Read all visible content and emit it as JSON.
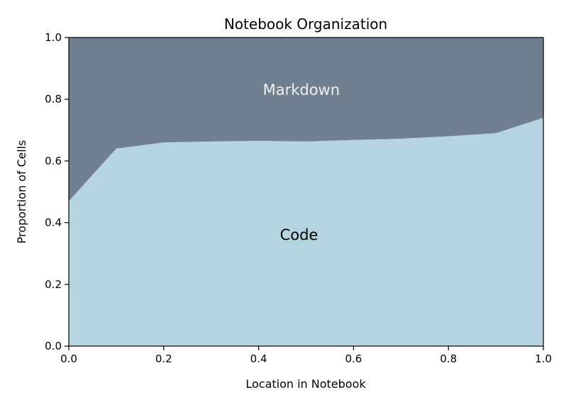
{
  "chart_data": {
    "type": "area",
    "title": "Notebook Organization",
    "xlabel": "Location in Notebook",
    "ylabel": "Proportion of Cells",
    "xlim": [
      0,
      1
    ],
    "ylim": [
      0,
      1
    ],
    "xticks": [
      "0.0",
      "0.2",
      "0.4",
      "0.6",
      "0.8",
      "1.0"
    ],
    "yticks": [
      "0.0",
      "0.2",
      "0.4",
      "0.6",
      "0.8",
      "1.0"
    ],
    "stacked": true,
    "grid": false,
    "x": [
      0.0,
      0.1,
      0.2,
      0.3,
      0.4,
      0.5,
      0.6,
      0.7,
      0.8,
      0.9,
      1.0
    ],
    "series": [
      {
        "name": "Code",
        "color": "#b3d4e0",
        "label_color": "#000000",
        "values": [
          0.47,
          0.64,
          0.66,
          0.663,
          0.665,
          0.663,
          0.668,
          0.672,
          0.68,
          0.69,
          0.74
        ]
      },
      {
        "name": "Markdown",
        "color": "#708090",
        "label_color": "#f0f0f0",
        "values": [
          0.53,
          0.36,
          0.34,
          0.337,
          0.335,
          0.337,
          0.332,
          0.328,
          0.32,
          0.31,
          0.26
        ]
      }
    ],
    "annotations": [
      {
        "text": "Code",
        "x": 0.485,
        "y": 0.36,
        "color": "#000000"
      },
      {
        "text": "Markdown",
        "x": 0.49,
        "y": 0.83,
        "color": "#f0f0f0"
      }
    ]
  }
}
